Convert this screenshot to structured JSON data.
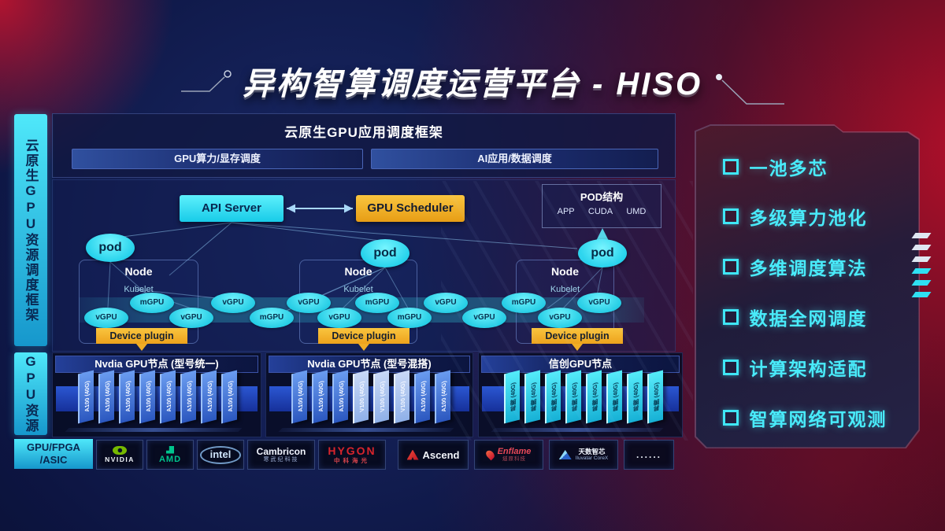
{
  "title": "异构智算调度运营平台 - HISO",
  "sidebar": {
    "framework_label": "云原生GPU资源调度框架",
    "gpu_resource_label": "GPU资源",
    "hardware_label_line1": "GPU/FPGA",
    "hardware_label_line2": "/ASIC"
  },
  "top_frame": {
    "title": "云原生GPU应用调度框架",
    "bars": [
      "GPU算力/显存调度",
      "AI应用/数据调度"
    ]
  },
  "scheduler": {
    "api_server": "API Server",
    "gpu_scheduler": "GPU Scheduler",
    "pod_struct": {
      "title": "POD结构",
      "items": [
        "APP",
        "CUDA",
        "UMD"
      ]
    },
    "pod_label": "pod",
    "node_label": "Node",
    "agent_label": "Kubelet",
    "device_plugin_label": "Device plugin",
    "gpu_ellipses": [
      "vGPU",
      "mGPU",
      "vGPU",
      "vGPU",
      "mGPU",
      "vGPU",
      "vGPU",
      "mGPU",
      "mGPU",
      "vGPU",
      "vGPU",
      "mGPU",
      "vGPU",
      "vGPU"
    ]
  },
  "gpu_groups": [
    {
      "title": "Nvdia GPU节点 (型号统一)",
      "cards": [
        "A100 (40G)",
        "A100 (40G)",
        "A100 (40G)",
        "A100 (40G)",
        "A100 (40G)",
        "A100 (40G)",
        "A100 (40G)",
        "A100 (40G)"
      ]
    },
    {
      "title": "Nvdia GPU节点 (型号混搭)",
      "cards": [
        "A100 (40G)",
        "A100 (40G)",
        "A100 (40G)",
        "V100 (40G)",
        "V100 (40G)",
        "V100 (40G)",
        "A100 (40G)",
        "A100 (40G)"
      ]
    },
    {
      "title": "信创GPU节点",
      "cards": [
        "昇腾 (40G)",
        "昇腾 (40G)",
        "昇腾 (40G)",
        "昇腾 (40G)",
        "昇腾 (40G)",
        "昇腾 (40G)",
        "昇腾 (40G)",
        "昇腾 (40G)"
      ]
    }
  ],
  "vendors": [
    {
      "name": "NVIDIA",
      "sub": "",
      "style": "nvidia"
    },
    {
      "name": "AMD",
      "sub": "",
      "style": "amd"
    },
    {
      "name": "intel",
      "sub": "",
      "style": "intel"
    },
    {
      "name": "Cambricon",
      "sub": "寒武纪科技",
      "style": "cambricon"
    },
    {
      "name": "HYGON",
      "sub": "中科海光",
      "style": "hygon"
    },
    {
      "name": "Ascend",
      "sub": "",
      "style": "ascend"
    },
    {
      "name": "Enflame",
      "sub": "燧原科技",
      "style": "enflame"
    },
    {
      "name": "天数智芯",
      "sub": "Iluvatar CoreX",
      "style": "iluvatar"
    },
    {
      "name": "......",
      "sub": "",
      "style": "dots"
    }
  ],
  "features": {
    "items": [
      "一池多芯",
      "多级算力池化",
      "多维调度算法",
      "数据全网调度",
      "计算架构适配",
      "智算网络可观测"
    ]
  },
  "colors": {
    "accent_cyan": "#3fe6f6",
    "accent_amber": "#f0ad26",
    "card_blue": "#2b57bf",
    "bg_red": "#a50f26",
    "nvidia_green": "#76b900",
    "amd_green": "#00c48d",
    "hygon_red": "#d8242c"
  }
}
